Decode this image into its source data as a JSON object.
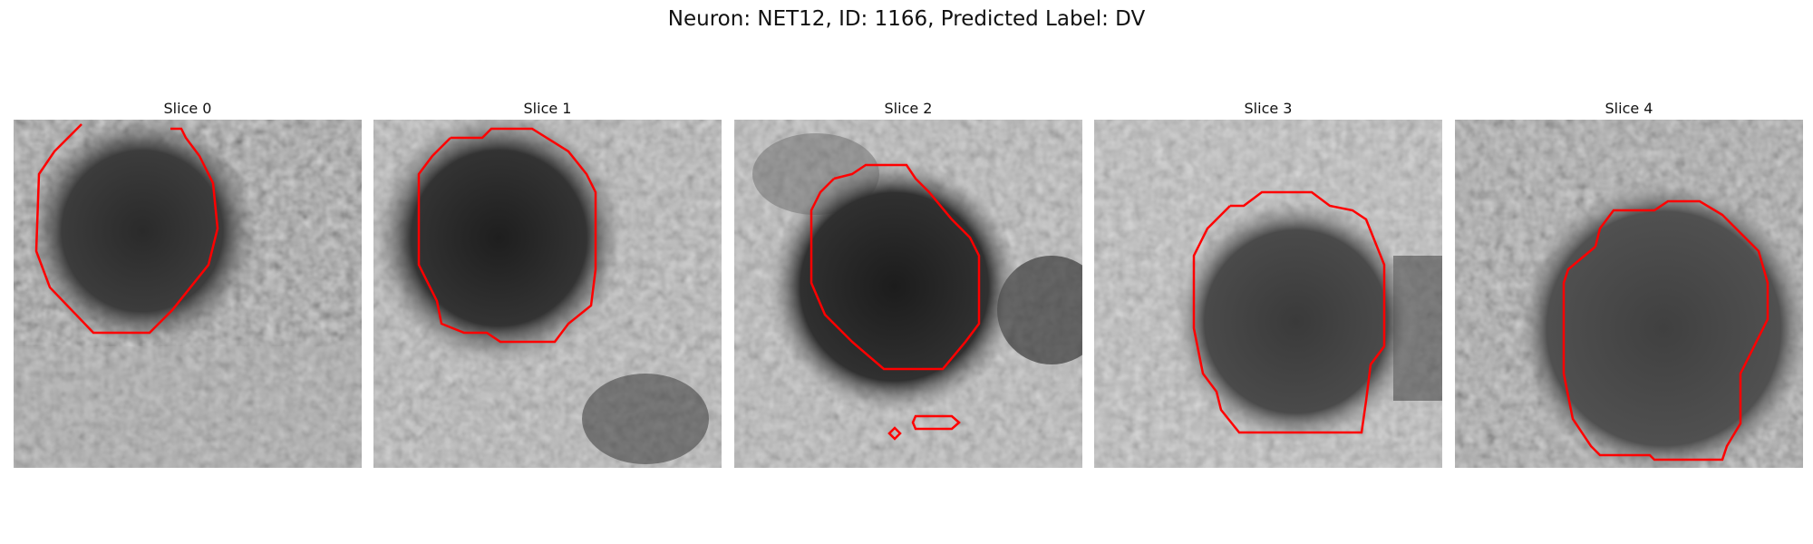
{
  "figure": {
    "title": "Neuron: NET12, ID: 1166, Predicted Label: DV"
  },
  "colors": {
    "contour": "#ff0000",
    "background": "#ffffff"
  },
  "slices": [
    {
      "title": "Slice 0",
      "image": "grayscale-microscopy-crop",
      "contour": "roi-outline"
    },
    {
      "title": "Slice 1",
      "image": "grayscale-microscopy-crop",
      "contour": "roi-outline"
    },
    {
      "title": "Slice 2",
      "image": "grayscale-microscopy-crop",
      "contour": "roi-outline"
    },
    {
      "title": "Slice 3",
      "image": "grayscale-microscopy-crop",
      "contour": "roi-outline"
    },
    {
      "title": "Slice 4",
      "image": "grayscale-microscopy-crop",
      "contour": "roi-outline"
    }
  ]
}
